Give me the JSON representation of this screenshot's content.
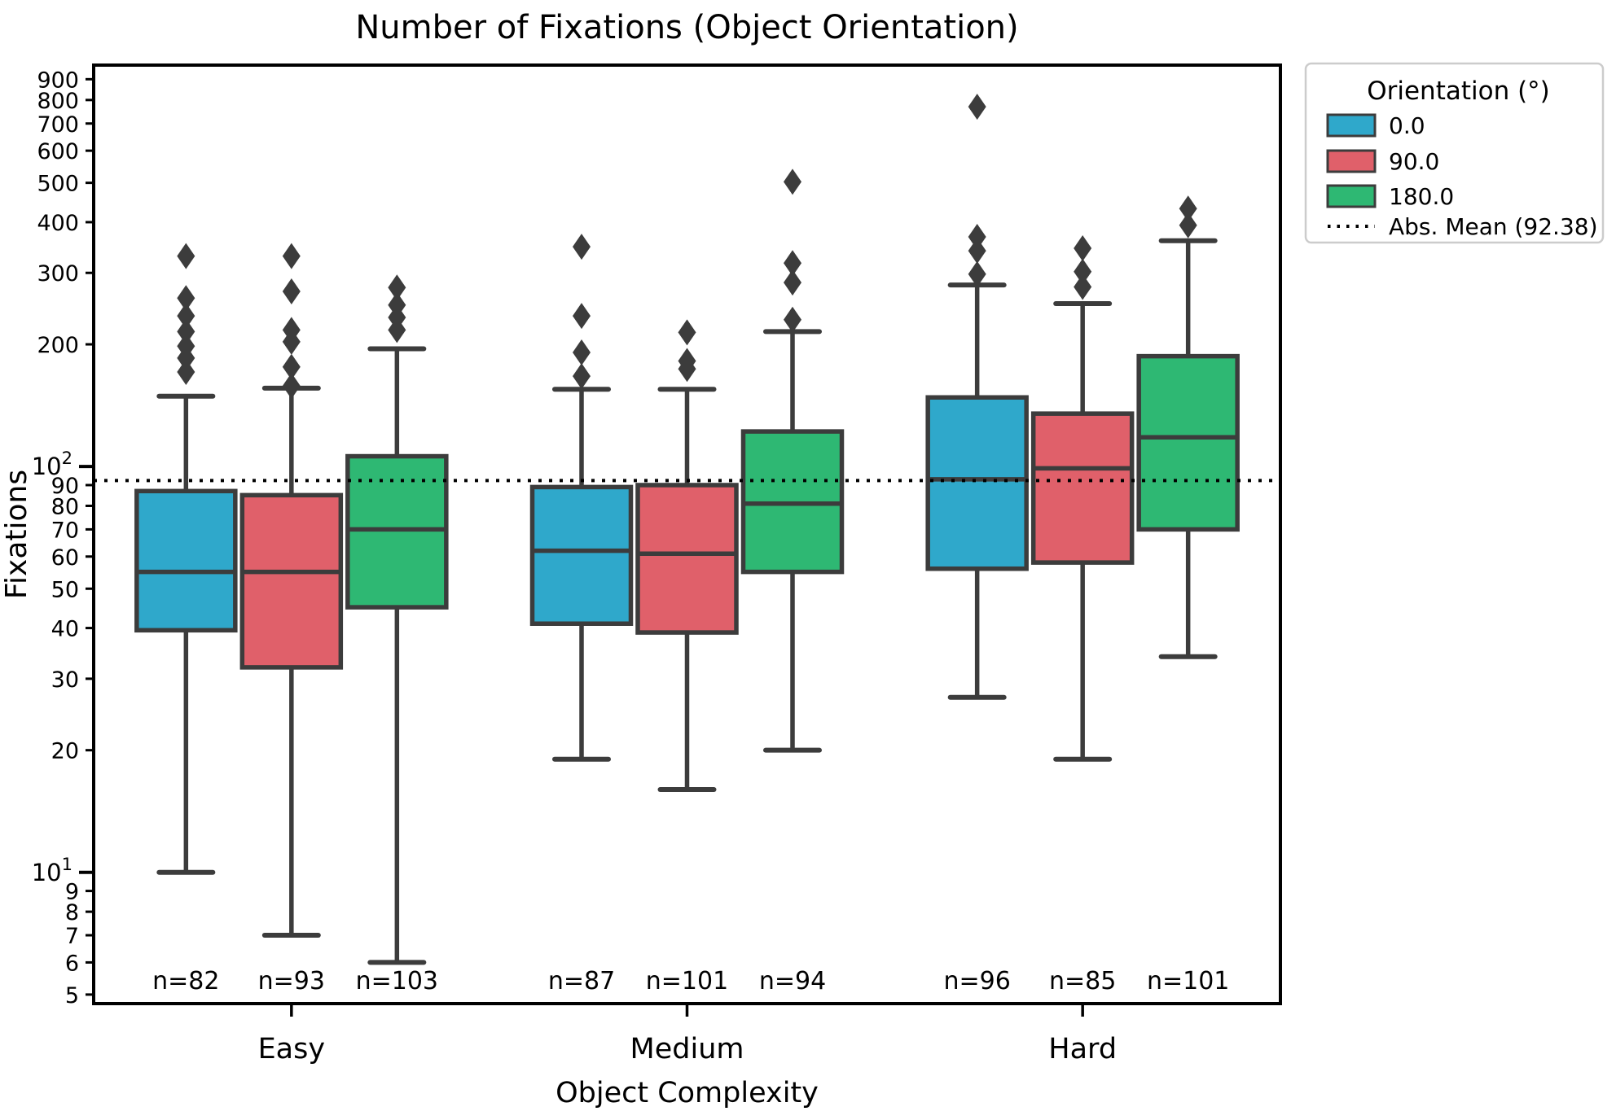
{
  "chart_data": {
    "type": "boxplot",
    "title": "Number of Fixations (Object Orientation)",
    "xlabel": "Object Complexity",
    "ylabel": "Fixations",
    "log_y": true,
    "ylim": [
      4.75,
      975
    ],
    "grid": false,
    "categories": [
      "Easy",
      "Medium",
      "Hard"
    ],
    "y_ticks": [
      {
        "v": 900,
        "label": "900"
      },
      {
        "v": 800,
        "label": "800"
      },
      {
        "v": 700,
        "label": "700"
      },
      {
        "v": 600,
        "label": "600"
      },
      {
        "v": 500,
        "label": "500"
      },
      {
        "v": 400,
        "label": "400"
      },
      {
        "v": 300,
        "label": "300"
      },
      {
        "v": 200,
        "label": "200"
      },
      {
        "v": 100,
        "base": "10",
        "exp": "2",
        "major": true
      },
      {
        "v": 90,
        "label": "90"
      },
      {
        "v": 80,
        "label": "80"
      },
      {
        "v": 70,
        "label": "70"
      },
      {
        "v": 60,
        "label": "60"
      },
      {
        "v": 50,
        "label": "50"
      },
      {
        "v": 40,
        "label": "40"
      },
      {
        "v": 30,
        "label": "30"
      },
      {
        "v": 20,
        "label": "20"
      },
      {
        "v": 10,
        "base": "10",
        "exp": "1",
        "major": true
      },
      {
        "v": 9,
        "label": "9"
      },
      {
        "v": 8,
        "label": "8"
      },
      {
        "v": 7,
        "label": "7"
      },
      {
        "v": 6,
        "label": "6"
      },
      {
        "v": 5,
        "label": "5"
      }
    ],
    "mean_line": {
      "value": 92.38,
      "label": "Abs. Mean (92.38)",
      "style": "dotted",
      "color": "#000000"
    },
    "legend": {
      "title": "Orientation (°)",
      "entries": [
        {
          "label": "0.0",
          "color": "#2FA8CB"
        },
        {
          "label": "90.0",
          "color": "#E0606A"
        },
        {
          "label": "180.0",
          "color": "#2EB873"
        }
      ],
      "mean_entry_label": "Abs. Mean (92.38)",
      "position": "upper right, outside axes"
    },
    "series": [
      {
        "name": "0.0",
        "color": "#2FA8CB",
        "boxes": [
          {
            "category": "Easy",
            "n_label": "n=82",
            "whislo": 10,
            "q1": 39.5,
            "med": 55,
            "q3": 87,
            "whishi": 149,
            "outliers": [
              330,
              260,
              235,
              215,
              198,
              185,
              171
            ]
          },
          {
            "category": "Medium",
            "n_label": "n=87",
            "whislo": 19,
            "q1": 41,
            "med": 62,
            "q3": 89,
            "whishi": 155,
            "outliers": [
              348,
              235,
              191,
              167
            ]
          },
          {
            "category": "Hard",
            "n_label": "n=96",
            "whislo": 27,
            "q1": 56,
            "med": 93,
            "q3": 148,
            "whishi": 280,
            "outliers": [
              770,
              368,
              340,
              298
            ]
          }
        ]
      },
      {
        "name": "90.0",
        "color": "#E0606A",
        "boxes": [
          {
            "category": "Easy",
            "n_label": "n=93",
            "whislo": 7,
            "q1": 32,
            "med": 55,
            "q3": 85,
            "whishi": 156,
            "outliers": [
              330,
              270,
              217,
              203,
              176,
              158
            ]
          },
          {
            "category": "Medium",
            "n_label": "n=101",
            "whislo": 16,
            "q1": 39,
            "med": 61,
            "q3": 90,
            "whishi": 155,
            "outliers": [
              214,
              182,
              174
            ]
          },
          {
            "category": "Hard",
            "n_label": "n=85",
            "whislo": 19,
            "q1": 58,
            "med": 99,
            "q3": 135,
            "whishi": 252,
            "outliers": [
              345,
              302,
              277
            ]
          }
        ]
      },
      {
        "name": "180.0",
        "color": "#2EB873",
        "boxes": [
          {
            "category": "Easy",
            "n_label": "n=103",
            "whislo": 6,
            "q1": 45,
            "med": 70,
            "q3": 106,
            "whishi": 195,
            "outliers": [
              276,
              250,
              233,
              217
            ]
          },
          {
            "category": "Medium",
            "n_label": "n=94",
            "whislo": 20,
            "q1": 55,
            "med": 81,
            "q3": 122,
            "whishi": 215,
            "outliers": [
              503,
              317,
              284,
              230
            ]
          },
          {
            "category": "Hard",
            "n_label": "n=101",
            "whislo": 34,
            "q1": 70,
            "med": 118,
            "q3": 187,
            "whishi": 360,
            "outliers": [
              432,
              393
            ]
          }
        ]
      }
    ]
  },
  "styles": {
    "box_edge_color": "#3C3C3C",
    "flier_color": "#3C3C3C",
    "spine_color": "#000000",
    "text_color": "#000000",
    "legend_border_color": "#CCCCCC",
    "background": "#FFFFFF"
  }
}
